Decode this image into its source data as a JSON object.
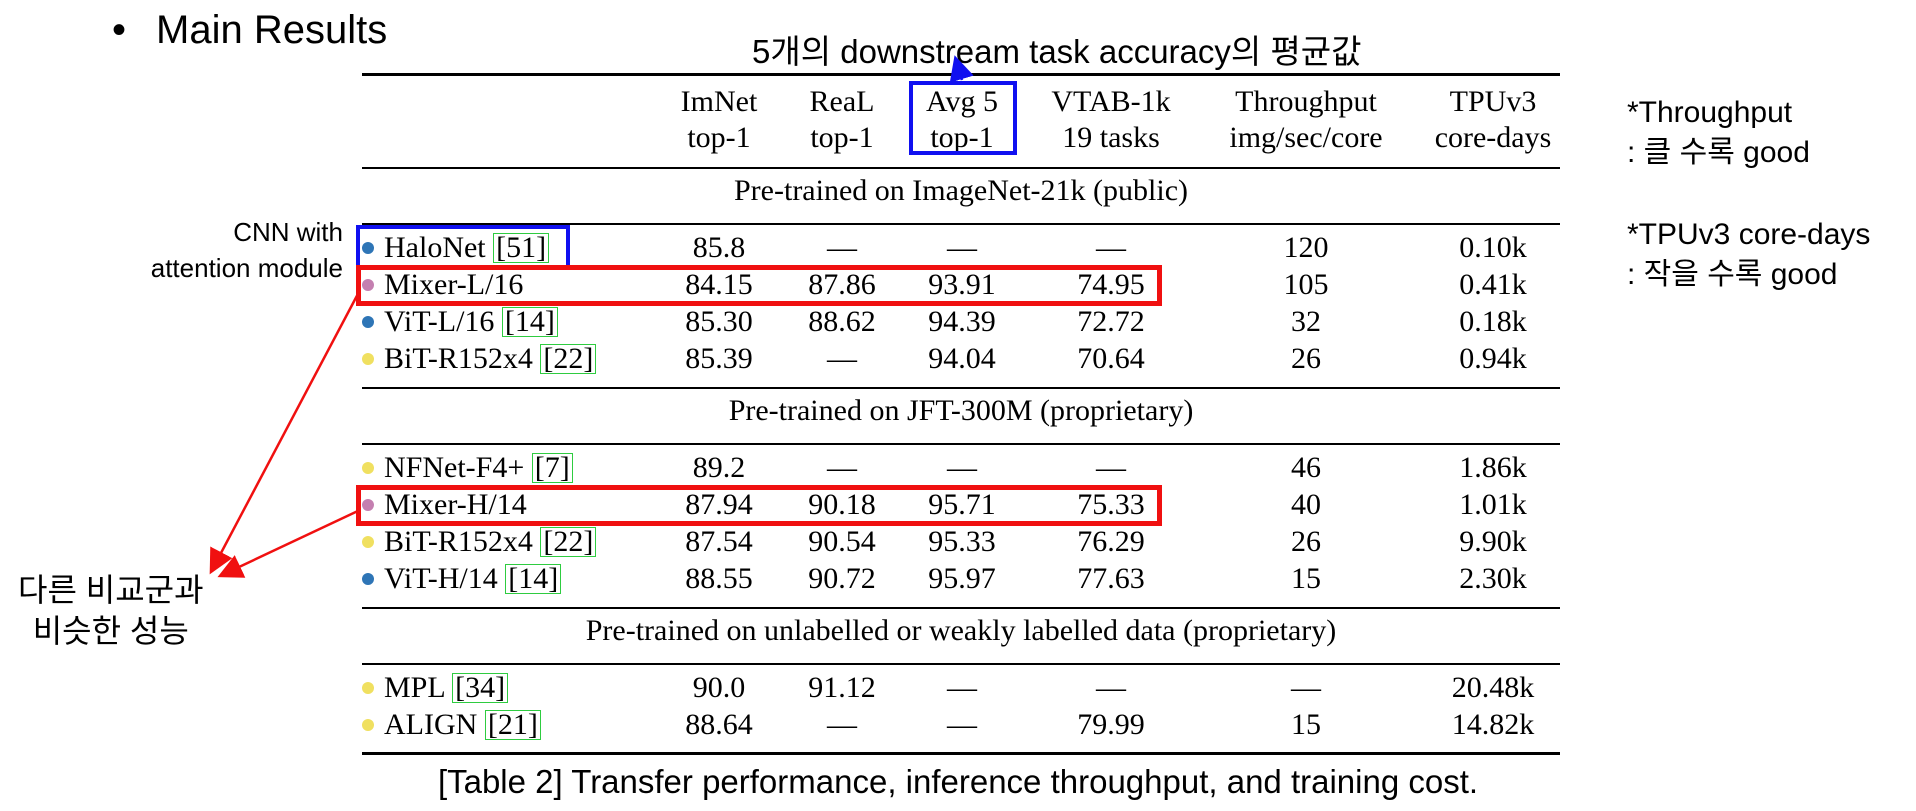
{
  "heading": {
    "bullet": "•",
    "text": "Main Results"
  },
  "avg_annotation": "5개의 downstream task accuracy의 평균값",
  "columns": [
    {
      "key": "imnet",
      "line1": "ImNet",
      "line2": "top-1"
    },
    {
      "key": "real",
      "line1": "ReaL",
      "line2": "top-1"
    },
    {
      "key": "avg5",
      "line1": "Avg 5",
      "line2": "top-1"
    },
    {
      "key": "vtab",
      "line1": "VTAB-1k",
      "line2": "19 tasks"
    },
    {
      "key": "throughput",
      "line1": "Throughput",
      "line2": "img/sec/core"
    },
    {
      "key": "tpu",
      "line1": "TPUv3",
      "line2": "core-days"
    }
  ],
  "sections": [
    {
      "title": "Pre-trained on ImageNet-21k (public)",
      "rows": [
        {
          "marker": "blue",
          "name": "HaloNet",
          "ref": "51",
          "imnet": "85.8",
          "real": "—",
          "avg5": "—",
          "vtab": "—",
          "throughput": "120",
          "tpu": "0.10k"
        },
        {
          "marker": "pink",
          "name": "Mixer-L/16",
          "ref": "",
          "imnet": "84.15",
          "real": "87.86",
          "avg5": "93.91",
          "vtab": "74.95",
          "throughput": "105",
          "tpu": "0.41k"
        },
        {
          "marker": "blue",
          "name": "ViT-L/16",
          "ref": "14",
          "imnet": "85.30",
          "real": "88.62",
          "avg5": "94.39",
          "vtab": "72.72",
          "throughput": "32",
          "tpu": "0.18k"
        },
        {
          "marker": "yellow",
          "name": "BiT-R152x4",
          "ref": "22",
          "imnet": "85.39",
          "real": "—",
          "avg5": "94.04",
          "vtab": "70.64",
          "throughput": "26",
          "tpu": "0.94k"
        }
      ]
    },
    {
      "title": "Pre-trained on JFT-300M (proprietary)",
      "rows": [
        {
          "marker": "yellow",
          "name": "NFNet-F4+",
          "ref": "7",
          "imnet": "89.2",
          "real": "—",
          "avg5": "—",
          "vtab": "—",
          "throughput": "46",
          "tpu": "1.86k"
        },
        {
          "marker": "pink",
          "name": "Mixer-H/14",
          "ref": "",
          "imnet": "87.94",
          "real": "90.18",
          "avg5": "95.71",
          "vtab": "75.33",
          "throughput": "40",
          "tpu": "1.01k"
        },
        {
          "marker": "yellow",
          "name": "BiT-R152x4",
          "ref": "22",
          "imnet": "87.54",
          "real": "90.54",
          "avg5": "95.33",
          "vtab": "76.29",
          "throughput": "26",
          "tpu": "9.90k"
        },
        {
          "marker": "blue",
          "name": "ViT-H/14",
          "ref": "14",
          "imnet": "88.55",
          "real": "90.72",
          "avg5": "95.97",
          "vtab": "77.63",
          "throughput": "15",
          "tpu": "2.30k"
        }
      ]
    },
    {
      "title": "Pre-trained on unlabelled or weakly labelled data (proprietary)",
      "rows": [
        {
          "marker": "yellow",
          "name": "MPL",
          "ref": "34",
          "imnet": "90.0",
          "real": "91.12",
          "avg5": "—",
          "vtab": "—",
          "throughput": "—",
          "tpu": "20.48k"
        },
        {
          "marker": "yellow",
          "name": "ALIGN",
          "ref": "21",
          "imnet": "88.64",
          "real": "—",
          "avg5": "—",
          "vtab": "79.99",
          "throughput": "15",
          "tpu": "14.82k"
        }
      ]
    }
  ],
  "marker_colors": {
    "blue": "#2e75b6",
    "pink": "#c47fb0",
    "yellow": "#f0e060"
  },
  "notes": {
    "throughput_line1": "*Throughput",
    "throughput_line2": ": 클 수록 good",
    "tpu_line1": "*TPUv3 core-days",
    "tpu_line2": ": 작을 수록 good",
    "cnn_line1": "CNN with",
    "cnn_line2": "attention module",
    "similar_line1": "다른 비교군과",
    "similar_line2": "비슷한 성능"
  },
  "highlight_colors": {
    "blue": "#1010f0",
    "red": "#f01010"
  },
  "caption": "[Table 2] Transfer performance, inference throughput, and training cost."
}
